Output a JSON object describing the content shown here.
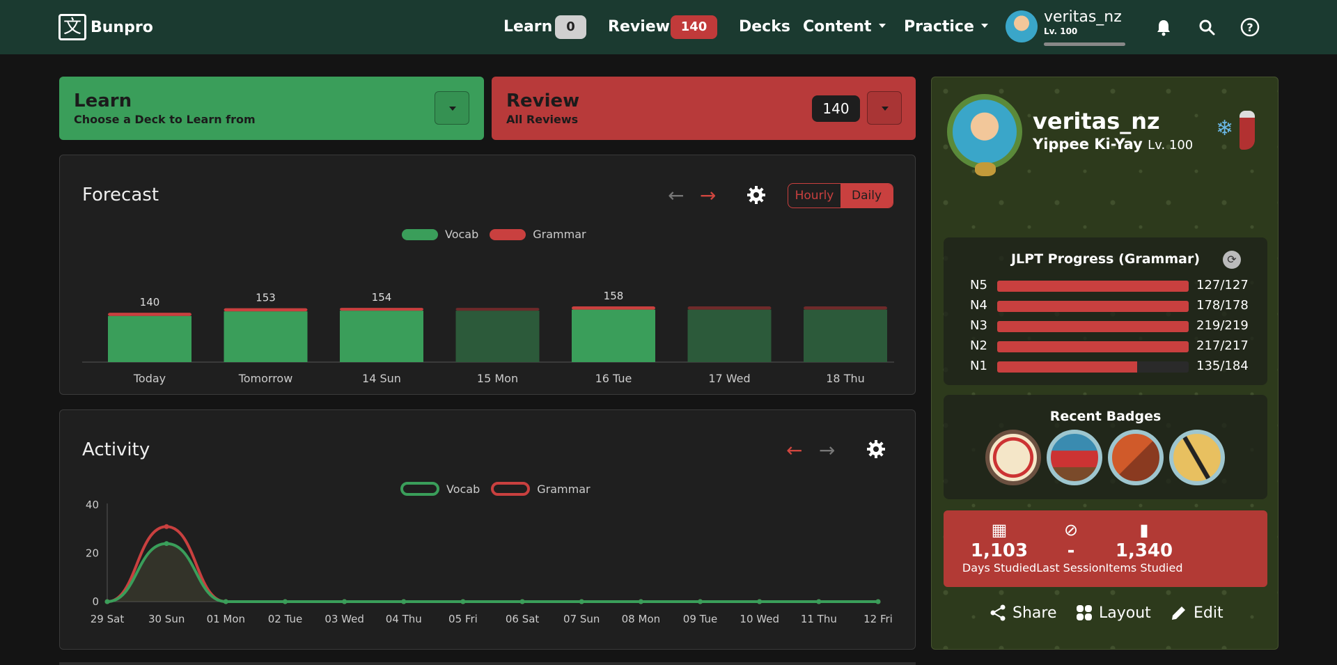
{
  "nav": {
    "logo_text": "Bunpro",
    "learn_label": "Learn",
    "learn_count": "0",
    "review_label": "Review",
    "review_count": "140",
    "decks_label": "Decks",
    "content_label": "Content",
    "practice_label": "Practice",
    "username": "veritas_nz",
    "level": "Lv. 100",
    "xp_progress": 1.0
  },
  "learn_card": {
    "title": "Learn",
    "subtitle": "Choose a Deck to Learn from"
  },
  "review_card": {
    "title": "Review",
    "subtitle": "All Reviews",
    "count": "140"
  },
  "forecast": {
    "title": "Forecast",
    "toggle": [
      "Hourly",
      "Daily"
    ],
    "active_toggle": "Daily",
    "legend": [
      "Vocab",
      "Grammar"
    ]
  },
  "activity": {
    "title": "Activity",
    "legend": [
      "Vocab",
      "Grammar"
    ]
  },
  "chart_data": [
    {
      "type": "bar",
      "categories": [
        "Today",
        "Tomorrow",
        "14 Sun",
        "15 Mon",
        "16 Tue",
        "17 Wed",
        "18 Thu"
      ],
      "series": [
        {
          "name": "Vocab",
          "values": [
            131,
            144,
            146,
            146,
            149,
            149,
            149
          ]
        },
        {
          "name": "Grammar",
          "values": [
            9,
            9,
            8,
            8,
            9,
            9,
            9
          ]
        }
      ],
      "totals_labels": [
        "140",
        "153",
        "154",
        "",
        "158",
        "",
        ""
      ],
      "projected": [
        false,
        false,
        false,
        true,
        false,
        true,
        true
      ],
      "colors": {
        "Vocab": "#3a9e5a",
        "Grammar": "#c9403f",
        "vocab_dim": "#2c5a3a",
        "grammar_dim": "#6e2a2a"
      },
      "stacked": true,
      "ylim": [
        0,
        180
      ]
    },
    {
      "type": "line",
      "categories": [
        "29 Sat",
        "30 Sun",
        "01 Mon",
        "02 Tue",
        "03 Wed",
        "04 Thu",
        "05 Fri",
        "06 Sat",
        "07 Sun",
        "08 Mon",
        "09 Tue",
        "10 Wed",
        "11 Thu",
        "12 Fri"
      ],
      "yticks": [
        "0",
        "20",
        "40"
      ],
      "ylim": [
        0,
        40
      ],
      "series": [
        {
          "name": "Vocab",
          "values": [
            0,
            24,
            0,
            0,
            0,
            0,
            0,
            0,
            0,
            0,
            0,
            0,
            0,
            0
          ],
          "color": "#3a9e5a"
        },
        {
          "name": "Grammar",
          "values": [
            0,
            31,
            0,
            0,
            0,
            0,
            0,
            0,
            0,
            0,
            0,
            0,
            0,
            0
          ],
          "color": "#c9403f"
        }
      ]
    }
  ],
  "profile": {
    "username": "veritas_nz",
    "title": "Yippee Ki-Yay",
    "level": "Lv. 100"
  },
  "jlpt": {
    "title": "JLPT Progress (Grammar)",
    "rows": [
      {
        "level": "N5",
        "count": "127/127",
        "progress": 1.0
      },
      {
        "level": "N4",
        "count": "178/178",
        "progress": 1.0
      },
      {
        "level": "N3",
        "count": "219/219",
        "progress": 1.0
      },
      {
        "level": "N2",
        "count": "217/217",
        "progress": 1.0
      },
      {
        "level": "N1",
        "count": "135/184",
        "progress": 0.73
      }
    ]
  },
  "badges": {
    "title": "Recent Badges",
    "items": [
      "calendar-badge",
      "torii-gate-badge",
      "room-badge",
      "chopsticks-badge"
    ]
  },
  "stats": [
    {
      "icon": "calendar-icon",
      "value": "1,103",
      "label": "Days Studied"
    },
    {
      "icon": "no-clock-icon",
      "value": "-",
      "label": "Last Session"
    },
    {
      "icon": "bar-chart-icon",
      "value": "1,340",
      "label": "Items Studied"
    }
  ],
  "actions": {
    "share": "Share",
    "layout": "Layout",
    "edit": "Edit"
  }
}
